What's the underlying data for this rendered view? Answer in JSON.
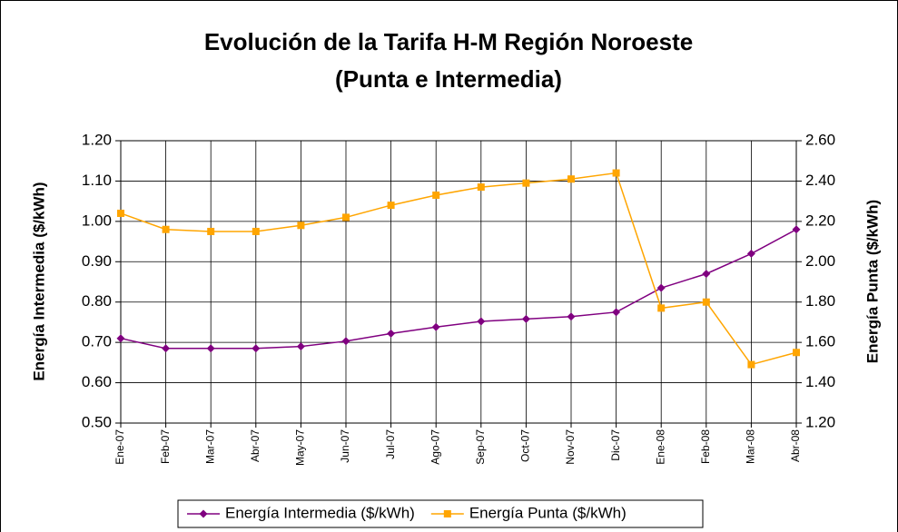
{
  "chart_data": {
    "type": "line",
    "title": [
      "Evolución de la Tarifa H-M Región Noroeste",
      "(Punta e Intermedia)"
    ],
    "y_label": "Energía Intermedia ($/kWh)",
    "y2_label": "Energía Punta ($/kWh)",
    "categories": [
      "Ene-07",
      "Feb-07",
      "Mar-07",
      "Abr-07",
      "May-07",
      "Jun-07",
      "Jul-07",
      "Ago-07",
      "Sep-07",
      "Oct-07",
      "Nov-07",
      "Dic-07",
      "Ene-08",
      "Feb-08",
      "Mar-08",
      "Abr-08"
    ],
    "series": [
      {
        "name": "Energía Intermedia ($/kWh)",
        "color": "#800080",
        "marker": "diamond",
        "values": [
          0.71,
          0.685,
          0.685,
          0.685,
          0.69,
          0.703,
          0.722,
          0.738,
          0.752,
          0.758,
          0.764,
          0.775,
          0.835,
          0.87,
          0.92,
          0.98
        ]
      },
      {
        "name": "Energía Punta ($/kWh)",
        "color": "#FFA500",
        "marker": "square",
        "axis": "y2",
        "values": [
          2.24,
          2.16,
          2.15,
          2.15,
          2.18,
          2.22,
          2.28,
          2.33,
          2.37,
          2.39,
          2.41,
          2.44,
          1.77,
          1.8,
          1.49,
          1.55
        ]
      }
    ],
    "ylim": [
      0.5,
      1.2
    ],
    "yticks": [
      {
        "value": 0.5,
        "label": "0.50"
      },
      {
        "value": 0.6,
        "label": "0.60"
      },
      {
        "value": 0.7,
        "label": "0.70"
      },
      {
        "value": 0.8,
        "label": "0.80"
      },
      {
        "value": 0.9,
        "label": "0.90"
      },
      {
        "value": 1.0,
        "label": "1.00"
      },
      {
        "value": 1.1,
        "label": "1.10"
      },
      {
        "value": 1.2,
        "label": "1.20"
      }
    ],
    "y2lim": [
      1.2,
      2.6
    ],
    "y2ticks": [
      {
        "value": 1.2,
        "label": "1.20"
      },
      {
        "value": 1.4,
        "label": "1.40"
      },
      {
        "value": 1.6,
        "label": "1.60"
      },
      {
        "value": 1.8,
        "label": "1.80"
      },
      {
        "value": 2.0,
        "label": "2.00"
      },
      {
        "value": 2.2,
        "label": "2.20"
      },
      {
        "value": 2.4,
        "label": "2.40"
      },
      {
        "value": 2.6,
        "label": "2.60"
      }
    ],
    "grid": true,
    "legend": "bottom"
  }
}
